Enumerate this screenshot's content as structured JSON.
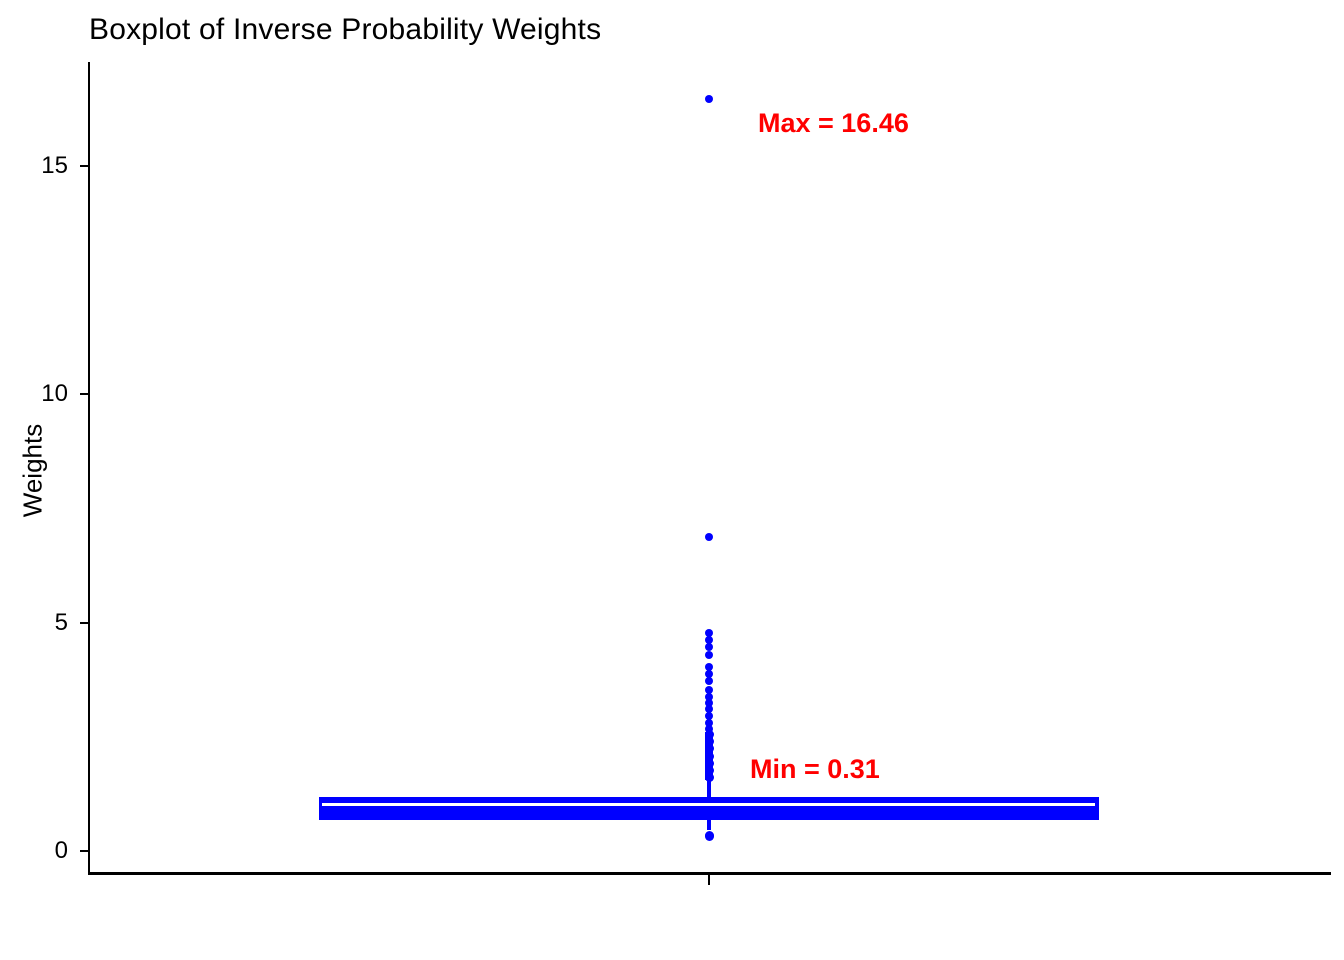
{
  "chart_data": {
    "type": "boxplot",
    "title": "Boxplot of Inverse Probability Weights",
    "ylabel": "Weights",
    "xlabel": "",
    "yticks": [
      0,
      5,
      10,
      15
    ],
    "ylim": [
      -0.46,
      17.3
    ],
    "grid": false,
    "series_color": "#0000ff",
    "annotation_color": "#ff0000",
    "box": {
      "q1": 0.68,
      "median": 1.04,
      "q3": 1.18,
      "lower_whisker_end": 0.46,
      "upper_whisker_end": 1.55
    },
    "outliers_high": [
      16.46,
      6.87,
      4.77,
      4.62,
      4.47,
      4.3,
      4.02,
      3.87,
      3.73,
      3.52,
      3.38,
      3.24,
      3.1,
      2.95,
      2.81,
      2.68
    ],
    "dense_outlier_cluster": {
      "from": 1.55,
      "to": 2.61
    },
    "outliers_low": [
      0.35,
      0.31
    ],
    "stats": {
      "max": 16.46,
      "min": 0.31
    },
    "annotations": [
      {
        "label": "Max = 16.46",
        "at_value": 15.9
      },
      {
        "label": "Min = 0.31",
        "at_value": 1.78
      }
    ]
  }
}
